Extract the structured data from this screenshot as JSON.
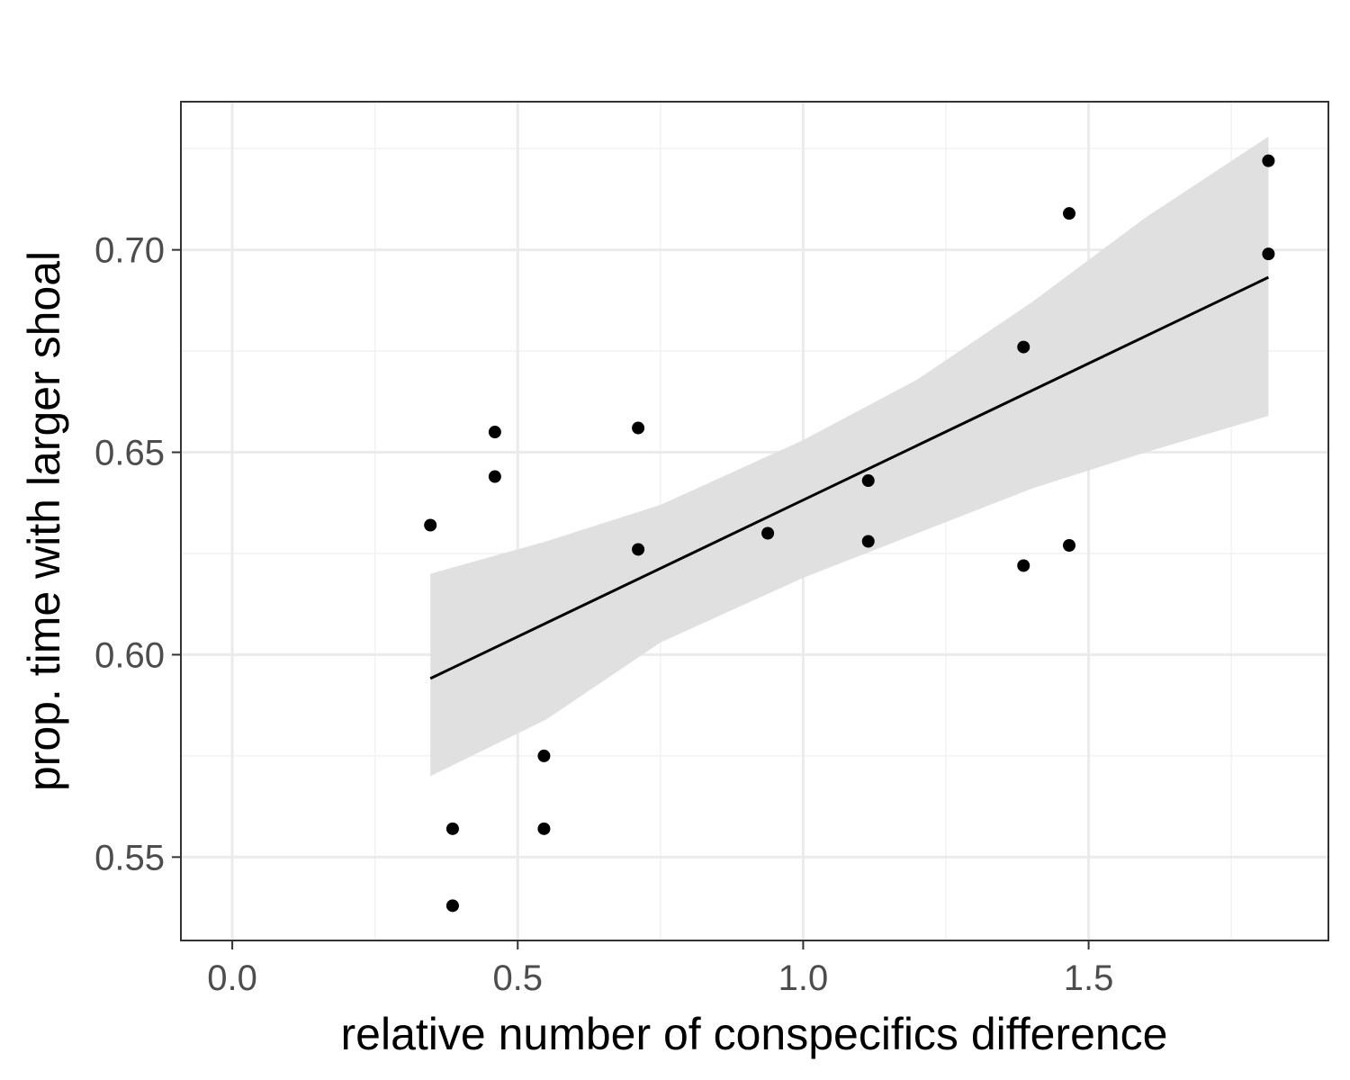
{
  "chart_data": {
    "type": "scatter",
    "title": "",
    "xlabel": "relative number of conspecifics difference",
    "ylabel": "prop. time with larger shoal",
    "xlim": [
      -0.09,
      1.92
    ],
    "ylim": [
      0.5294,
      0.7366
    ],
    "x_ticks": [
      0.0,
      0.5,
      1.0,
      1.5
    ],
    "x_tick_labels": [
      "0.0",
      "0.5",
      "1.0",
      "1.5"
    ],
    "y_ticks": [
      0.55,
      0.6,
      0.65,
      0.7
    ],
    "y_tick_labels": [
      "0.55",
      "0.60",
      "0.65",
      "0.70"
    ],
    "grid": true,
    "points": [
      {
        "x": 0.347,
        "y": 0.632
      },
      {
        "x": 0.386,
        "y": 0.557
      },
      {
        "x": 0.386,
        "y": 0.538
      },
      {
        "x": 0.46,
        "y": 0.655
      },
      {
        "x": 0.46,
        "y": 0.644
      },
      {
        "x": 0.546,
        "y": 0.575
      },
      {
        "x": 0.546,
        "y": 0.557
      },
      {
        "x": 0.711,
        "y": 0.656
      },
      {
        "x": 0.711,
        "y": 0.626
      },
      {
        "x": 0.938,
        "y": 0.63
      },
      {
        "x": 1.114,
        "y": 0.643
      },
      {
        "x": 1.114,
        "y": 0.628
      },
      {
        "x": 1.386,
        "y": 0.676
      },
      {
        "x": 1.386,
        "y": 0.622
      },
      {
        "x": 1.466,
        "y": 0.709
      },
      {
        "x": 1.466,
        "y": 0.627
      },
      {
        "x": 1.815,
        "y": 0.722
      },
      {
        "x": 1.815,
        "y": 0.699
      }
    ],
    "regression": {
      "type": "linear",
      "x_range": [
        0.347,
        1.815
      ],
      "intercept": 0.5707,
      "slope": 0.0675,
      "ci": [
        {
          "x": 0.347,
          "lo": 0.57,
          "hi": 0.62
        },
        {
          "x": 0.55,
          "lo": 0.584,
          "hi": 0.628
        },
        {
          "x": 0.75,
          "lo": 0.603,
          "hi": 0.637
        },
        {
          "x": 1.0,
          "lo": 0.619,
          "hi": 0.653
        },
        {
          "x": 1.2,
          "lo": 0.63,
          "hi": 0.668
        },
        {
          "x": 1.4,
          "lo": 0.641,
          "hi": 0.687
        },
        {
          "x": 1.6,
          "lo": 0.65,
          "hi": 0.708
        },
        {
          "x": 1.815,
          "lo": 0.659,
          "hi": 0.728
        }
      ]
    },
    "colors": {
      "points": "#000000",
      "line": "#000000",
      "ribbon": "#e0e0e0",
      "major_grid": "#ebebeb",
      "minor_grid": "#f2f2f2",
      "panel_border": "#333333",
      "tick_text": "#4d4d4d"
    }
  }
}
